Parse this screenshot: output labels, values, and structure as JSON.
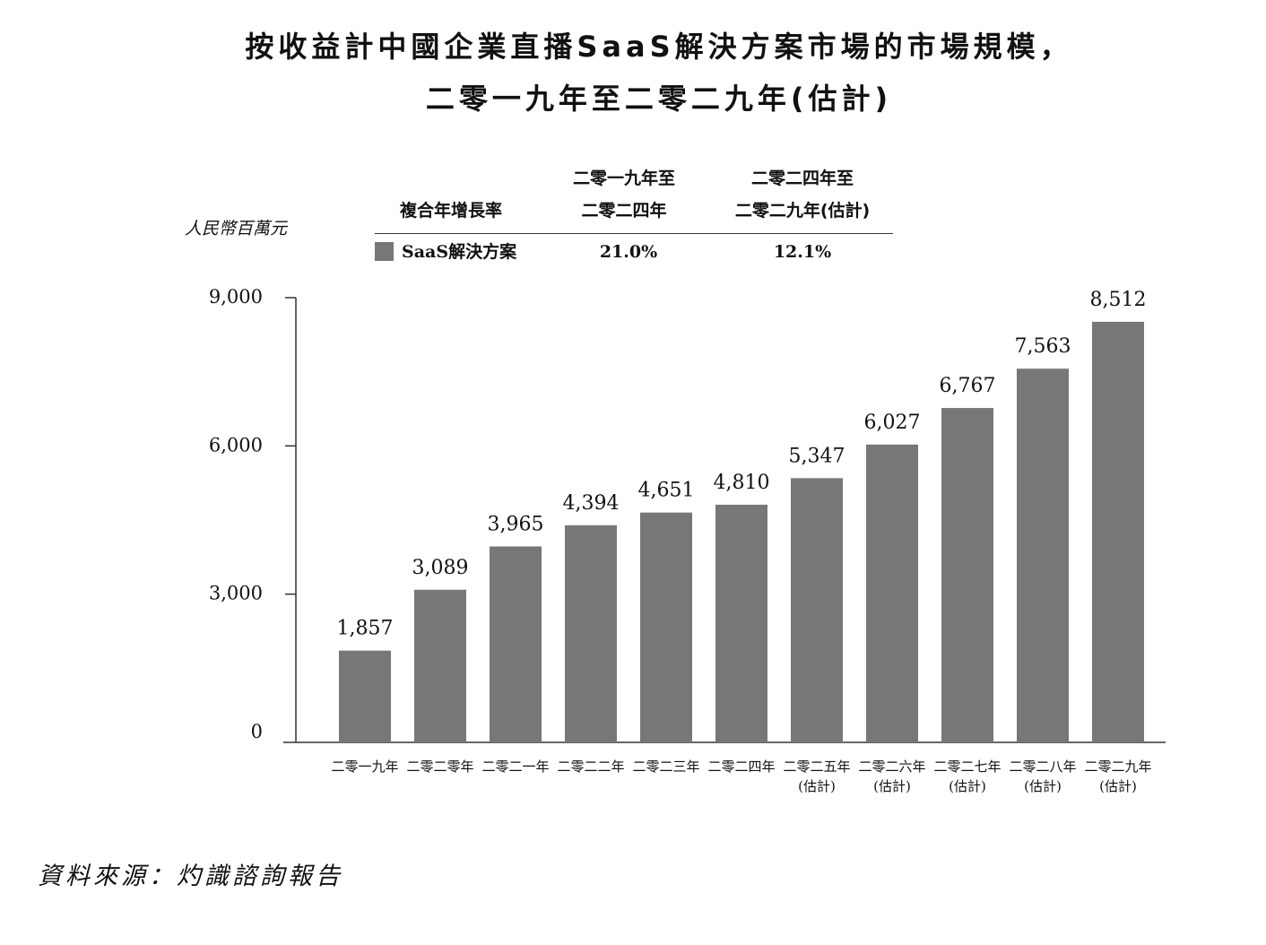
{
  "title": {
    "line1": "按收益計中國企業直播SaaS解決方案市場的市場規模，",
    "line2": "二零一九年至二零二九年(估計)"
  },
  "unit_label": "人民幣百萬元",
  "cagr_table": {
    "header_label": "複合年增長率",
    "periods": [
      {
        "line1": "二零一九年至",
        "line2": "二零二四年"
      },
      {
        "line1": "二零二四年至",
        "line2": "二零二九年(估計)"
      }
    ],
    "rows": [
      {
        "label": "SaaS解決方案",
        "values": [
          "21.0%",
          "12.1%"
        ]
      }
    ]
  },
  "colors": {
    "bar": "#777777",
    "axis": "#333333",
    "text": "#111111"
  },
  "chart_data": {
    "type": "bar",
    "categories": [
      {
        "line1": "二零一九年",
        "line2": ""
      },
      {
        "line1": "二零二零年",
        "line2": ""
      },
      {
        "line1": "二零二一年",
        "line2": ""
      },
      {
        "line1": "二零二二年",
        "line2": ""
      },
      {
        "line1": "二零二三年",
        "line2": ""
      },
      {
        "line1": "二零二四年",
        "line2": ""
      },
      {
        "line1": "二零二五年",
        "line2": "(估計)"
      },
      {
        "line1": "二零二六年",
        "line2": "(估計)"
      },
      {
        "line1": "二零二七年",
        "line2": "(估計)"
      },
      {
        "line1": "二零二八年",
        "line2": "(估計)"
      },
      {
        "line1": "二零二九年",
        "line2": "(估計)"
      }
    ],
    "values": [
      1857,
      3089,
      3965,
      4394,
      4651,
      4810,
      5347,
      6027,
      6767,
      7563,
      8512
    ],
    "value_labels": [
      "1,857",
      "3,089",
      "3,965",
      "4,394",
      "4,651",
      "4,810",
      "5,347",
      "6,027",
      "6,767",
      "7,563",
      "8,512"
    ],
    "ylim": [
      0,
      9000
    ],
    "yticks": [
      0,
      3000,
      6000,
      9000
    ],
    "ytick_labels": [
      "0",
      "3,000",
      "6,000",
      "9,000"
    ],
    "grid": false,
    "legend": "top"
  },
  "source_note": "資料來源：灼識諮詢報告"
}
